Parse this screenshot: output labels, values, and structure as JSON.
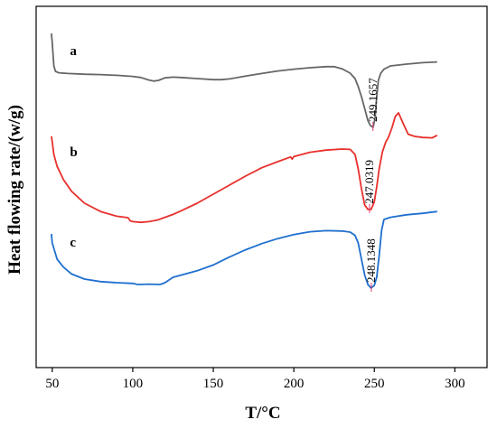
{
  "chart_data": {
    "type": "line",
    "xlabel": "T/°C",
    "ylabel": "Heat flowing rate/(w/g)",
    "xlim": [
      40,
      320
    ],
    "xticks": [
      50,
      100,
      150,
      200,
      250,
      300
    ],
    "y_ticks_shown": false,
    "y_scale": "arbitrary units, curves vertically offset",
    "ylim": [
      0,
      100
    ],
    "grid": false,
    "legend": "none",
    "series": [
      {
        "name": "a",
        "color": "#666666",
        "peak_label": "249.1657",
        "peak_x": 249.17,
        "label_x": 61,
        "label_y": 86.5,
        "points": [
          [
            49.5,
            92.5
          ],
          [
            50,
            90
          ],
          [
            51,
            83.5
          ],
          [
            52,
            82
          ],
          [
            54,
            81.6
          ],
          [
            60,
            81.4
          ],
          [
            70,
            81.2
          ],
          [
            80,
            81.1
          ],
          [
            90,
            80.9
          ],
          [
            100,
            80.6
          ],
          [
            105,
            80.3
          ],
          [
            110,
            79.6
          ],
          [
            113,
            79.3
          ],
          [
            116,
            79.5
          ],
          [
            120,
            80.2
          ],
          [
            125,
            80.4
          ],
          [
            130,
            80.3
          ],
          [
            140,
            80
          ],
          [
            150,
            79.7
          ],
          [
            155,
            79.7
          ],
          [
            160,
            79.9
          ],
          [
            170,
            80.7
          ],
          [
            180,
            81.4
          ],
          [
            190,
            82.1
          ],
          [
            200,
            82.6
          ],
          [
            210,
            83
          ],
          [
            220,
            83.3
          ],
          [
            225,
            83.3
          ],
          [
            230,
            82.7
          ],
          [
            235,
            81.5
          ],
          [
            238,
            80
          ],
          [
            240,
            77.8
          ],
          [
            242,
            75
          ],
          [
            244,
            71.7
          ],
          [
            246,
            68.4
          ],
          [
            247.5,
            67
          ],
          [
            249.2,
            66.5
          ],
          [
            250.5,
            69
          ],
          [
            251.5,
            75
          ],
          [
            252.5,
            79.5
          ],
          [
            254,
            81.5
          ],
          [
            256,
            82.6
          ],
          [
            260,
            83.5
          ],
          [
            270,
            84
          ],
          [
            280,
            84.4
          ],
          [
            289,
            84.6
          ]
        ]
      },
      {
        "name": "b",
        "color": "#e8302c",
        "peak_label": "247.0319",
        "peak_x": 247.03,
        "label_x": 61,
        "label_y": 58.5,
        "points": [
          [
            49.5,
            64
          ],
          [
            50,
            62.5
          ],
          [
            51,
            59
          ],
          [
            53,
            55.7
          ],
          [
            57,
            52
          ],
          [
            62,
            48.8
          ],
          [
            70,
            45.5
          ],
          [
            80,
            43.2
          ],
          [
            90,
            41.9
          ],
          [
            97,
            41.5
          ],
          [
            98.5,
            40.6
          ],
          [
            100,
            40.4
          ],
          [
            105,
            40.2
          ],
          [
            110,
            40.4
          ],
          [
            115,
            40.8
          ],
          [
            120,
            41.6
          ],
          [
            125,
            42.4
          ],
          [
            130,
            43.4
          ],
          [
            140,
            45.5
          ],
          [
            150,
            48
          ],
          [
            160,
            50.5
          ],
          [
            170,
            53
          ],
          [
            180,
            55.3
          ],
          [
            190,
            57
          ],
          [
            198,
            58.3
          ],
          [
            199,
            57.7
          ],
          [
            200,
            58.4
          ],
          [
            210,
            59.6
          ],
          [
            220,
            60.2
          ],
          [
            230,
            60.5
          ],
          [
            235,
            60.4
          ],
          [
            238,
            59
          ],
          [
            240,
            55
          ],
          [
            242,
            49.5
          ],
          [
            244,
            45
          ],
          [
            246,
            43.8
          ],
          [
            248,
            43.8
          ],
          [
            249,
            44.8
          ],
          [
            250,
            46
          ],
          [
            251.5,
            50
          ],
          [
            253,
            55
          ],
          [
            255,
            59.7
          ],
          [
            257,
            62.3
          ],
          [
            259,
            64
          ],
          [
            261,
            66.5
          ],
          [
            263,
            69.5
          ],
          [
            265,
            70.5
          ],
          [
            268,
            67.5
          ],
          [
            271,
            64.6
          ],
          [
            275,
            64
          ],
          [
            280,
            63.7
          ],
          [
            286,
            63.6
          ],
          [
            289,
            64.3
          ]
        ]
      },
      {
        "name": "c",
        "color": "#1f6fce",
        "peak_label": "248.1348",
        "peak_x": 248.13,
        "label_x": 61,
        "label_y": 33.5,
        "points": [
          [
            49.5,
            37
          ],
          [
            50,
            34.5
          ],
          [
            51,
            33
          ],
          [
            53,
            30
          ],
          [
            57,
            27.8
          ],
          [
            62,
            25.9
          ],
          [
            70,
            24.5
          ],
          [
            80,
            23.8
          ],
          [
            90,
            23.5
          ],
          [
            100,
            23.3
          ],
          [
            103,
            23
          ],
          [
            110,
            23.1
          ],
          [
            117,
            23
          ],
          [
            120,
            23.5
          ],
          [
            125,
            25
          ],
          [
            130,
            25.6
          ],
          [
            140,
            26.8
          ],
          [
            150,
            28.4
          ],
          [
            160,
            30.6
          ],
          [
            170,
            32.6
          ],
          [
            180,
            34.3
          ],
          [
            190,
            35.7
          ],
          [
            200,
            36.8
          ],
          [
            210,
            37.6
          ],
          [
            220,
            37.9
          ],
          [
            230,
            37.8
          ],
          [
            235,
            37.5
          ],
          [
            238,
            36.6
          ],
          [
            240,
            34.5
          ],
          [
            242,
            30
          ],
          [
            244,
            25.6
          ],
          [
            246,
            23
          ],
          [
            248,
            22
          ],
          [
            250,
            22.8
          ],
          [
            251.5,
            25
          ],
          [
            253,
            31
          ],
          [
            254.5,
            38
          ],
          [
            256,
            41
          ],
          [
            260,
            41.6
          ],
          [
            270,
            42.3
          ],
          [
            280,
            42.7
          ],
          [
            289,
            43.2
          ]
        ]
      }
    ]
  }
}
